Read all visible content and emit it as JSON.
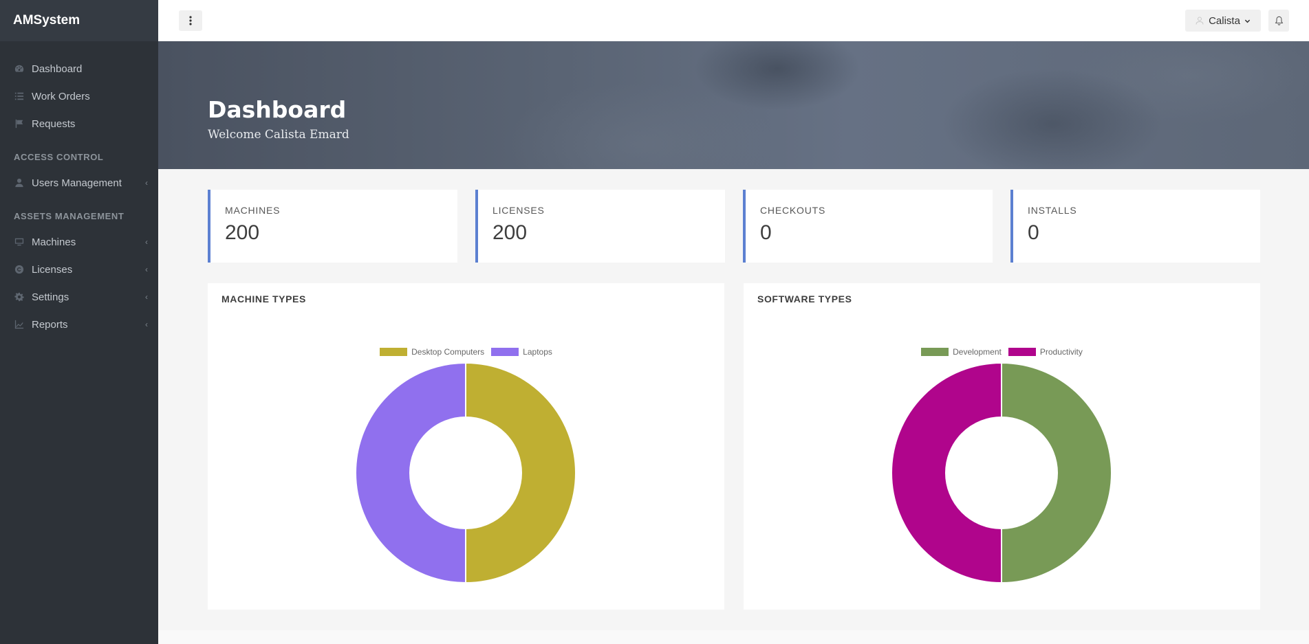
{
  "brand": "AMSystem",
  "sidebar": {
    "items": [
      {
        "label": "Dashboard",
        "icon": "dashboard-icon"
      },
      {
        "label": "Work Orders",
        "icon": "list-icon"
      },
      {
        "label": "Requests",
        "icon": "flag-icon"
      }
    ],
    "heading_access": "ACCESS CONTROL",
    "access_items": [
      {
        "label": "Users Management",
        "icon": "user-icon",
        "chevron": "‹"
      }
    ],
    "heading_assets": "ASSETS MANAGEMENT",
    "asset_items": [
      {
        "label": "Machines",
        "icon": "monitor-icon",
        "chevron": "‹"
      },
      {
        "label": "Licenses",
        "icon": "copyright-icon",
        "chevron": "‹"
      },
      {
        "label": "Settings",
        "icon": "gear-icon",
        "chevron": "‹"
      },
      {
        "label": "Reports",
        "icon": "chart-icon",
        "chevron": "‹"
      }
    ]
  },
  "header": {
    "user_name": "Calista"
  },
  "hero": {
    "title": "Dashboard",
    "subtitle": "Welcome Calista Emard"
  },
  "stats": [
    {
      "title": "MACHINES",
      "value": "200"
    },
    {
      "title": "LICENSES",
      "value": "200"
    },
    {
      "title": "CHECKOUTS",
      "value": "0"
    },
    {
      "title": "INSTALLS",
      "value": "0"
    }
  ],
  "colors": {
    "accent": "#5c80d1",
    "sidebar": "#2d3238"
  },
  "chart_data": [
    {
      "type": "pie",
      "title": "MACHINE TYPES",
      "categories": [
        "Desktop Computers",
        "Laptops"
      ],
      "values": [
        100,
        100
      ],
      "colors": [
        "#bfaf32",
        "#9070ee"
      ],
      "donut": true,
      "legend": "top"
    },
    {
      "type": "pie",
      "title": "SOFTWARE TYPES",
      "categories": [
        "Development",
        "Productivity"
      ],
      "values": [
        50,
        50
      ],
      "colors": [
        "#789a56",
        "#b0058c"
      ],
      "donut": true,
      "legend": "top"
    }
  ]
}
